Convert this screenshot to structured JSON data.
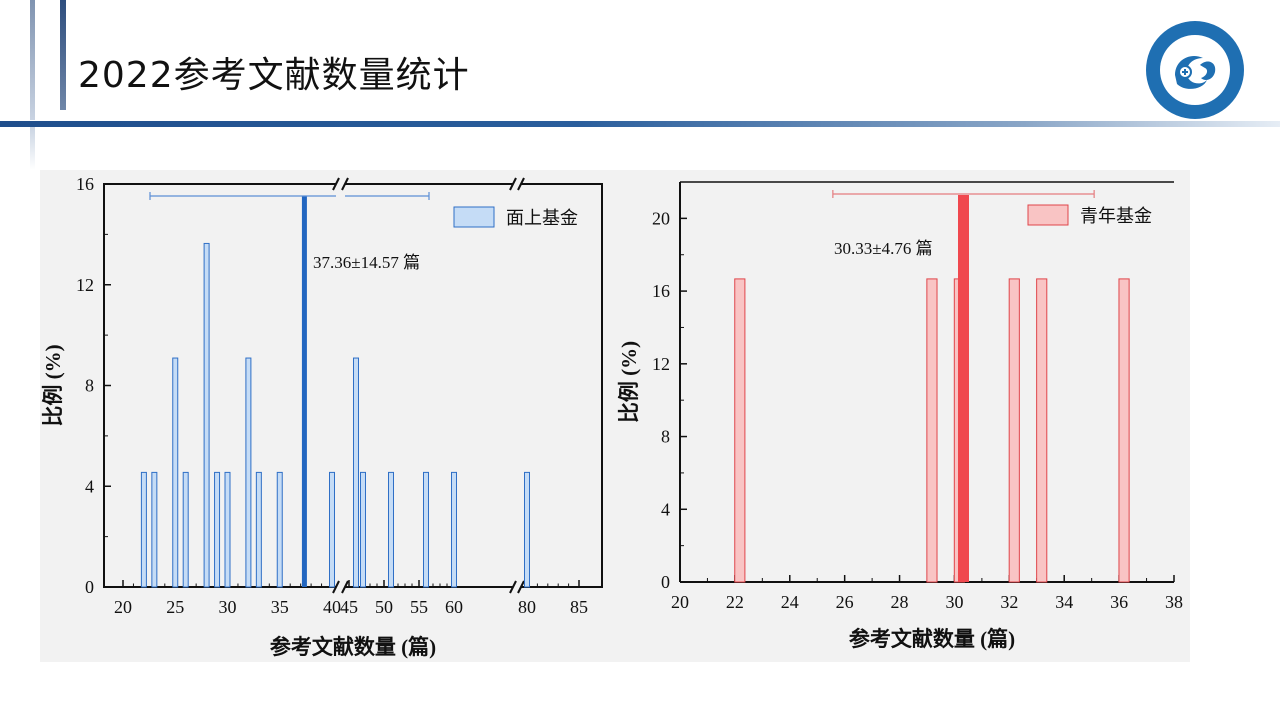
{
  "slide": {
    "title": "2022参考文献数量统计"
  },
  "colors": {
    "left_fill": "#c5dcf6",
    "left_stroke": "#2f6fc6",
    "left_mean": "#2266c0",
    "right_fill": "#f9c4c4",
    "right_stroke": "#e0454a",
    "right_mean": "#f0484e",
    "title_bar": "#1f4e8c"
  },
  "chart_data": [
    {
      "type": "bar",
      "legend": "面上基金",
      "ylabel": "比例 (%)",
      "xlabel": "参考文献数量 (篇)",
      "ylim": [
        0,
        16
      ],
      "yticks": [
        "0",
        "4",
        "8",
        "12",
        "16"
      ],
      "axis_breaks": [
        "40–45",
        "60–80"
      ],
      "x_tick_labels": [
        {
          "label": "20",
          "value": 20
        },
        {
          "label": "25",
          "value": 25
        },
        {
          "label": "30",
          "value": 30
        },
        {
          "label": "35",
          "value": 35
        },
        {
          "label": "40",
          "value": 40
        },
        {
          "label": "45",
          "value": 45
        },
        {
          "label": "50",
          "value": 50
        },
        {
          "label": "55",
          "value": 55
        },
        {
          "label": "60",
          "value": 60
        },
        {
          "label": "80",
          "value": 80
        },
        {
          "label": "85",
          "value": 85
        }
      ],
      "bars": [
        {
          "x": 22,
          "value": 4.55
        },
        {
          "x": 23,
          "value": 4.55
        },
        {
          "x": 25,
          "value": 9.09
        },
        {
          "x": 26,
          "value": 4.55
        },
        {
          "x": 28,
          "value": 13.64
        },
        {
          "x": 29,
          "value": 4.55
        },
        {
          "x": 30,
          "value": 4.55
        },
        {
          "x": 32,
          "value": 9.09
        },
        {
          "x": 33,
          "value": 4.55
        },
        {
          "x": 35,
          "value": 4.55
        },
        {
          "x": 40,
          "value": 4.55
        },
        {
          "x": 46,
          "value": 9.09
        },
        {
          "x": 47,
          "value": 4.55
        },
        {
          "x": 51,
          "value": 4.55
        },
        {
          "x": 56,
          "value": 4.55
        },
        {
          "x": 60,
          "value": 4.55
        },
        {
          "x": 80,
          "value": 4.55
        }
      ],
      "mean": 37.36,
      "sd": 14.57,
      "annotation": "37.36±14.57 篇"
    },
    {
      "type": "bar",
      "legend": "青年基金",
      "ylabel": "比例 (%)",
      "xlabel": "参考文献数量 (篇)",
      "xlim": [
        20,
        38
      ],
      "ylim": [
        0,
        22
      ],
      "yticks": [
        "0",
        "4",
        "8",
        "12",
        "16",
        "20"
      ],
      "xticks": [
        "20",
        "22",
        "24",
        "26",
        "28",
        "30",
        "32",
        "34",
        "36",
        "38"
      ],
      "bars": [
        {
          "x": 22,
          "value": 16.67
        },
        {
          "x": 29,
          "value": 16.67
        },
        {
          "x": 30,
          "value": 16.67
        },
        {
          "x": 32,
          "value": 16.67
        },
        {
          "x": 33,
          "value": 16.67
        },
        {
          "x": 36,
          "value": 16.67
        }
      ],
      "mean": 30.33,
      "sd": 4.76,
      "annotation": "30.33±4.76 篇"
    }
  ]
}
